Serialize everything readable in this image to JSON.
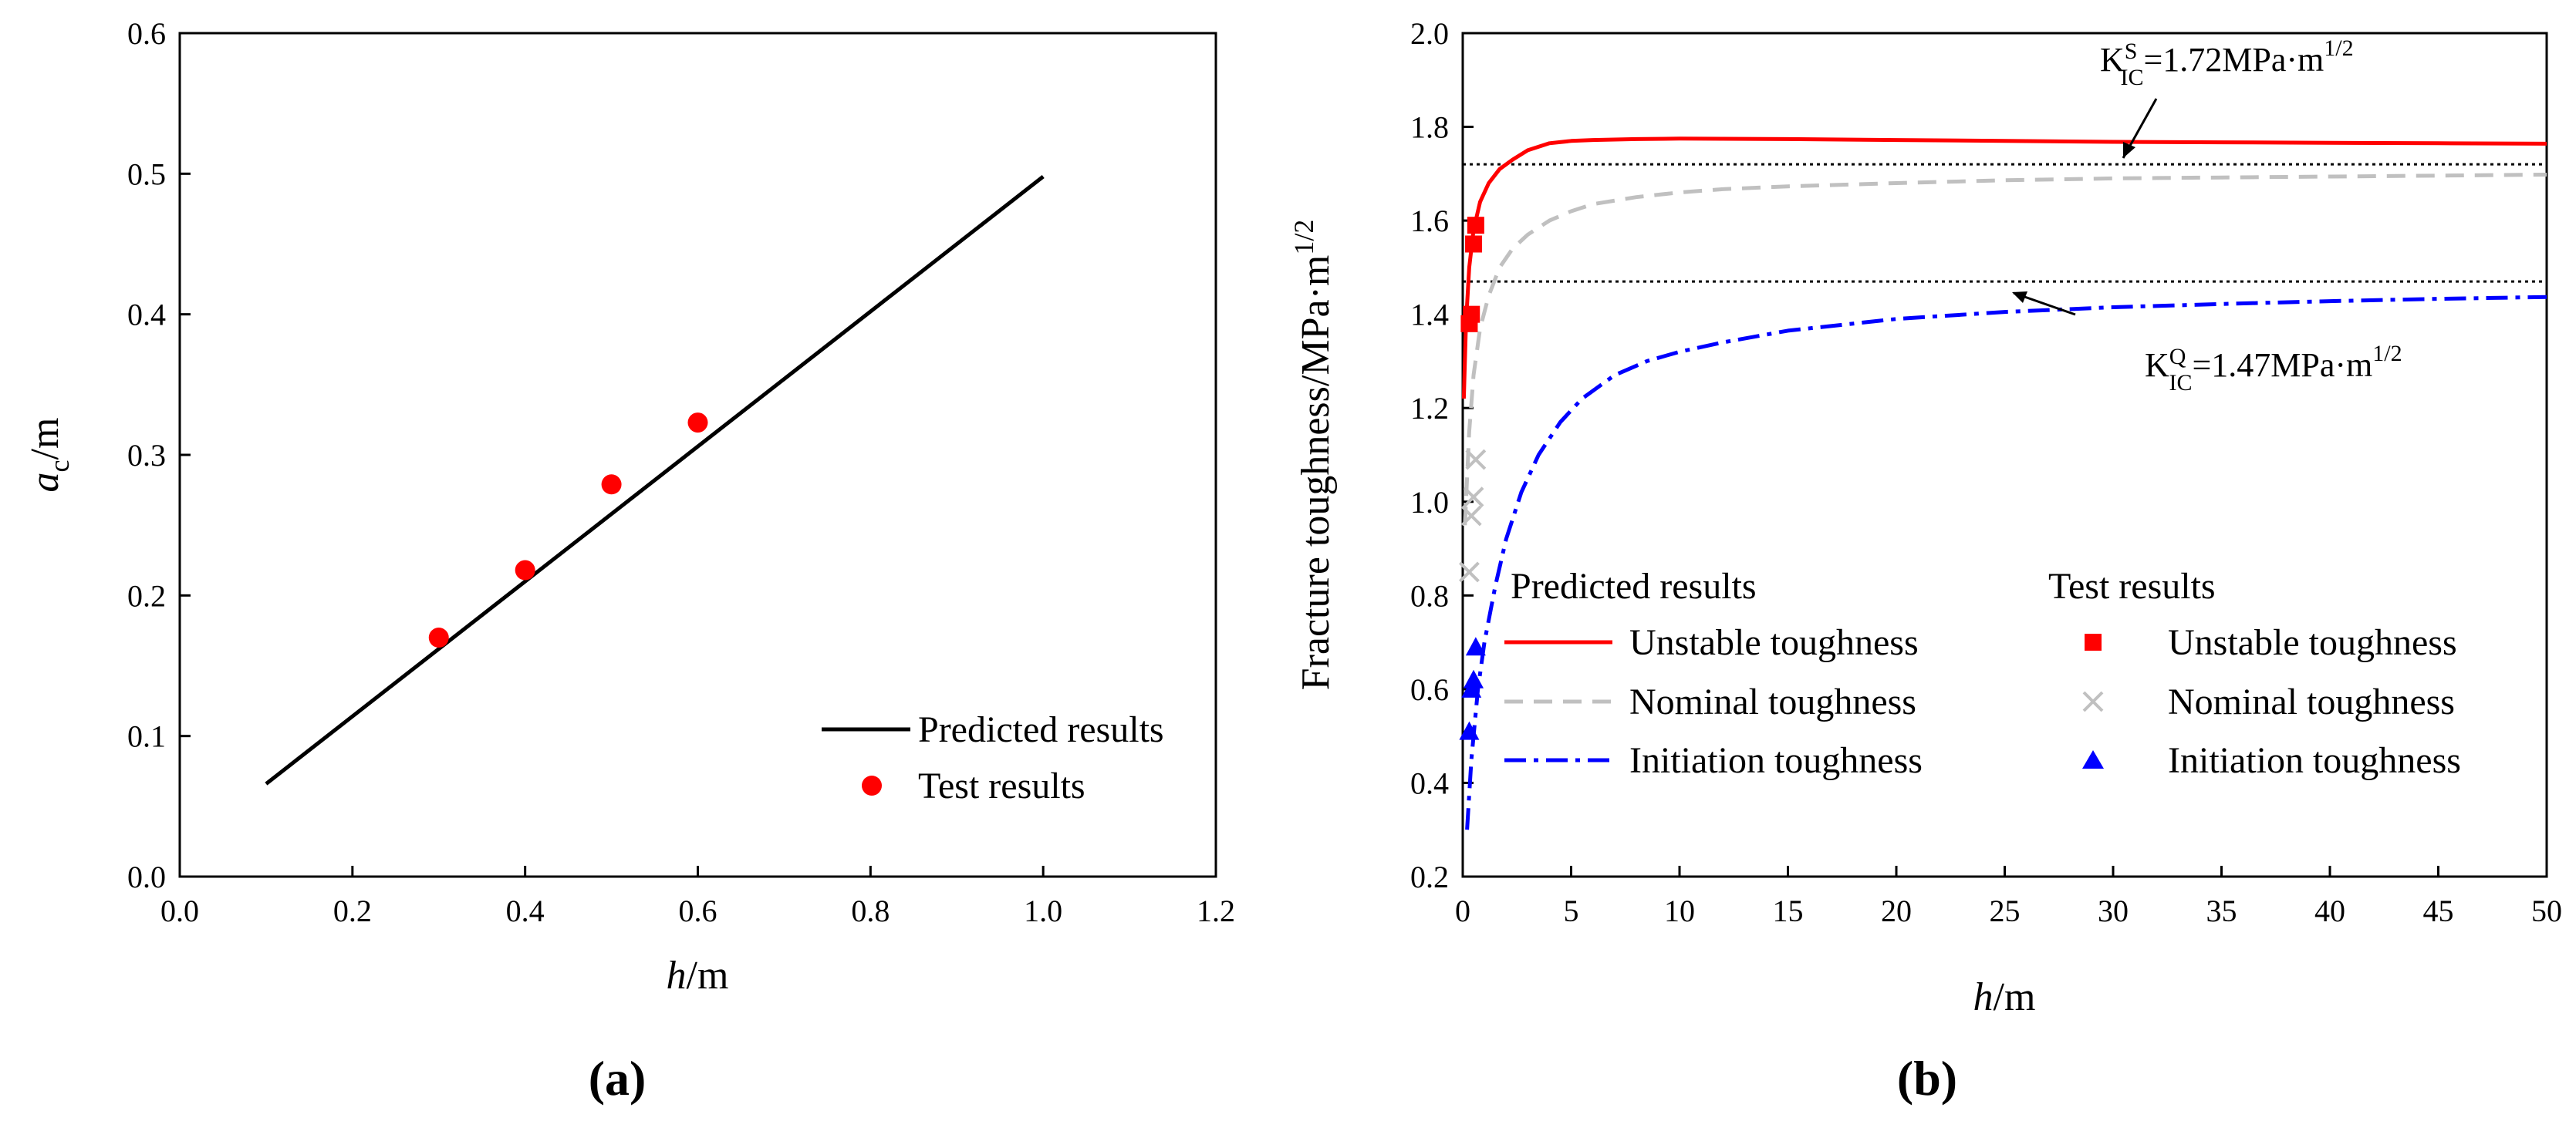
{
  "panel_a": {
    "caption": "(a)",
    "ylabel_var": "a",
    "ylabel_sub": "c",
    "ylabel_unit": "/m",
    "xlabel_var": "h",
    "xlabel_unit": "/m",
    "legend": {
      "predicted": "Predicted results",
      "test": "Test results"
    }
  },
  "panel_b": {
    "caption": "(b)",
    "ylabel": "Fracture toughness/MPa·m",
    "ylabel_sup": "1/2",
    "xlabel_var": "h",
    "xlabel_unit": "/m",
    "legend": {
      "predicted_title": "Predicted results",
      "test_title": "Test results",
      "unstable": "Unstable toughness",
      "nominal": "Nominal toughness",
      "initiation": "Initiation toughness"
    },
    "annotations": {
      "ks": {
        "base": "K",
        "sup": "S",
        "sub": "IC",
        "value": "=1.72MPa·m",
        "value_sup": "1/2"
      },
      "kq": {
        "base": "K",
        "sup": "Q",
        "sub": "IC",
        "value": "=1.47MPa·m",
        "value_sup": "1/2"
      }
    }
  },
  "chart_data": [
    {
      "id": "a",
      "type": "line+scatter",
      "title": "",
      "xlabel": "h/m",
      "ylabel": "ac/m",
      "xlim": [
        0,
        1.2
      ],
      "ylim": [
        0,
        0.6
      ],
      "xticks": [
        0.0,
        0.2,
        0.4,
        0.6,
        0.8,
        1.0,
        1.2
      ],
      "yticks": [
        0.0,
        0.1,
        0.2,
        0.3,
        0.4,
        0.5,
        0.6
      ],
      "tick_decimals": 1,
      "series": [
        {
          "name": "Predicted results",
          "kind": "line",
          "color": "#000000",
          "x": [
            0.1,
            1.0
          ],
          "y": [
            0.066,
            0.498
          ]
        },
        {
          "name": "Test results",
          "kind": "scatter",
          "color": "#ff0000",
          "x": [
            0.3,
            0.4,
            0.5,
            0.6
          ],
          "y": [
            0.17,
            0.218,
            0.279,
            0.323
          ]
        }
      ]
    },
    {
      "id": "b",
      "type": "line+scatter",
      "title": "",
      "xlabel": "h/m",
      "ylabel": "Fracture toughness/MPa·m^1/2",
      "xlim": [
        0,
        50
      ],
      "ylim": [
        0.2,
        2.0
      ],
      "xticks": [
        0,
        5,
        10,
        15,
        20,
        25,
        30,
        35,
        40,
        45,
        50
      ],
      "yticks": [
        0.2,
        0.4,
        0.6,
        0.8,
        1.0,
        1.2,
        1.4,
        1.6,
        1.8,
        2.0
      ],
      "tick_decimals": 1,
      "reference_lines": [
        {
          "name": "KIC^S",
          "y": 1.72,
          "color": "#000000"
        },
        {
          "name": "KIC^Q",
          "y": 1.47,
          "color": "#000000"
        }
      ],
      "series": [
        {
          "name": "Unstable toughness (predicted)",
          "kind": "line",
          "style": "solid",
          "color": "#ff0000",
          "x": [
            0.05,
            0.15,
            0.3,
            0.5,
            0.8,
            1.2,
            1.7,
            2.3,
            3,
            4,
            5,
            6,
            8,
            10,
            15,
            20,
            25,
            30,
            35,
            40,
            45,
            50
          ],
          "y": [
            1.22,
            1.38,
            1.5,
            1.58,
            1.64,
            1.68,
            1.71,
            1.73,
            1.75,
            1.765,
            1.77,
            1.772,
            1.774,
            1.775,
            1.774,
            1.772,
            1.77,
            1.768,
            1.767,
            1.766,
            1.765,
            1.764
          ]
        },
        {
          "name": "Nominal toughness (predicted)",
          "kind": "line",
          "style": "dashed",
          "color": "#c0c0c0",
          "x": [
            0.1,
            0.3,
            0.5,
            0.8,
            1.2,
            1.7,
            2.3,
            3,
            4,
            5,
            6,
            8,
            10,
            12,
            15,
            20,
            25,
            30,
            35,
            40,
            45,
            50
          ],
          "y": [
            0.95,
            1.15,
            1.27,
            1.37,
            1.44,
            1.5,
            1.54,
            1.57,
            1.6,
            1.62,
            1.635,
            1.65,
            1.66,
            1.667,
            1.673,
            1.68,
            1.686,
            1.69,
            1.692,
            1.694,
            1.696,
            1.698
          ]
        },
        {
          "name": "Initiation toughness (predicted)",
          "kind": "line",
          "style": "dashdot",
          "color": "#0000ff",
          "x": [
            0.2,
            0.4,
            0.7,
            1,
            1.5,
            2,
            2.7,
            3.5,
            4.5,
            5.5,
            7,
            8.5,
            10,
            12,
            15,
            20,
            25,
            30,
            35,
            40,
            45,
            50
          ],
          "y": [
            0.3,
            0.45,
            0.6,
            0.7,
            0.82,
            0.92,
            1.02,
            1.1,
            1.17,
            1.22,
            1.27,
            1.3,
            1.32,
            1.34,
            1.365,
            1.39,
            1.405,
            1.415,
            1.422,
            1.428,
            1.433,
            1.437
          ]
        },
        {
          "name": "Unstable toughness (test)",
          "kind": "scatter",
          "marker": "square",
          "color": "#ff0000",
          "x": [
            0.3,
            0.4,
            0.5,
            0.6
          ],
          "y": [
            1.38,
            1.4,
            1.55,
            1.59
          ]
        },
        {
          "name": "Nominal toughness (test)",
          "kind": "scatter",
          "marker": "cross",
          "color": "#c0c0c0",
          "x": [
            0.3,
            0.4,
            0.5,
            0.6
          ],
          "y": [
            0.85,
            0.97,
            1.01,
            1.09
          ]
        },
        {
          "name": "Initiation toughness (test)",
          "kind": "scatter",
          "marker": "triangle",
          "color": "#0000ff",
          "x": [
            0.3,
            0.4,
            0.5,
            0.6
          ],
          "y": [
            0.51,
            0.6,
            0.62,
            0.69
          ]
        }
      ]
    }
  ]
}
